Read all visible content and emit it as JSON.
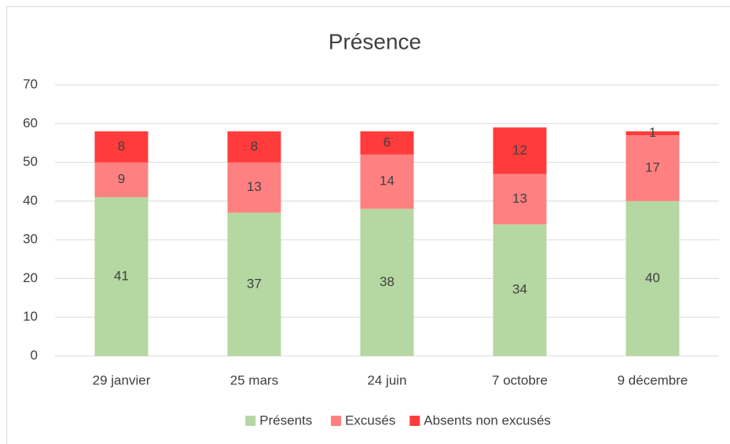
{
  "chart_data": {
    "type": "stacked_bar",
    "title": "Présence",
    "categories": [
      "29 janvier",
      "25 mars",
      "24 juin",
      "7 octobre",
      "9 décembre"
    ],
    "series": [
      {
        "name": "Présents",
        "color": "#b5d7a1",
        "values": [
          41,
          37,
          38,
          34,
          40
        ]
      },
      {
        "name": "Excusés",
        "color": "#ff8080",
        "values": [
          9,
          13,
          14,
          13,
          17
        ]
      },
      {
        "name": "Absents non excusés",
        "color": "#ff3b3b",
        "values": [
          8,
          8,
          6,
          12,
          1
        ]
      }
    ],
    "ylim": [
      0,
      70
    ],
    "yticks": [
      0,
      10,
      20,
      30,
      40,
      50,
      60,
      70
    ],
    "grid": true,
    "legend": "bottom"
  }
}
